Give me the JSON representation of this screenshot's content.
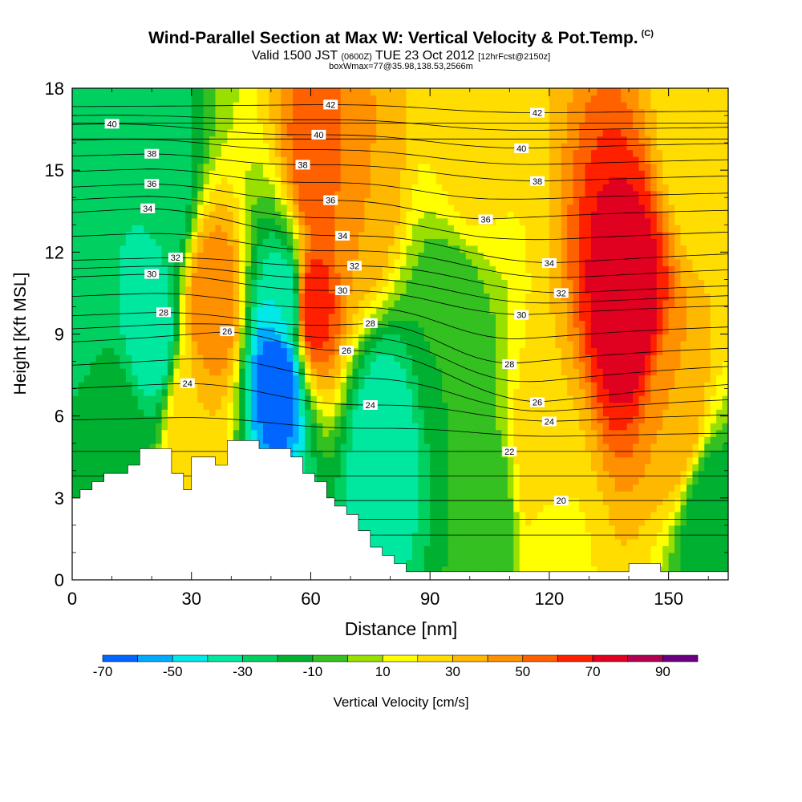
{
  "chart_data": {
    "type": "heatmap",
    "title": "Wind-Parallel Section at Max W: Vertical Velocity & Pot.Temp.",
    "title_mark": "(C)",
    "subtitle": {
      "valid": "Valid 1500 JST",
      "utc": "(0600Z)",
      "date": "TUE 23 Oct 2012",
      "fcst": "[12hrFcst@2150z]"
    },
    "subtitle2": "boxWmax=77@35.98,138.53,2566m",
    "xlabel": "Distance [nm]",
    "ylabel": "Height [Kft MSL]",
    "xlim": [
      0,
      165
    ],
    "ylim": [
      0,
      18
    ],
    "x_ticks": [
      "0",
      "30",
      "60",
      "90",
      "120",
      "150"
    ],
    "y_ticks": [
      "0",
      "3",
      "6",
      "9",
      "12",
      "15",
      "18"
    ],
    "colorbar": {
      "label": "Vertical Velocity [cm/s]",
      "levels": [
        -80,
        -70,
        -60,
        -50,
        -40,
        -30,
        -20,
        -10,
        0,
        10,
        20,
        30,
        40,
        50,
        60,
        70,
        80,
        90,
        100
      ],
      "colors": [
        "#0000ff",
        "#0066ff",
        "#00aaff",
        "#00e8e8",
        "#00e8a0",
        "#00d060",
        "#00b030",
        "#33c020",
        "#99e000",
        "#ffff00",
        "#ffdd00",
        "#ffb800",
        "#ff9000",
        "#ff6000",
        "#ff2000",
        "#e00020",
        "#b00050",
        "#6a0080"
      ],
      "tick_labels": [
        "-70",
        "-50",
        "-30",
        "-10",
        "10",
        "30",
        "50",
        "70",
        "90"
      ]
    },
    "velocity_features": [
      {
        "x": 52,
        "y": 7.5,
        "w": -70
      },
      {
        "x": 54,
        "y": 10,
        "w": -40
      },
      {
        "x": 78,
        "y": 5,
        "w": -40
      },
      {
        "x": 20,
        "y": 9,
        "w": -40
      },
      {
        "x": 23,
        "y": 14,
        "w": -30
      },
      {
        "x": 2,
        "y": 12,
        "w": -30
      },
      {
        "x": 60,
        "y": 10,
        "w": 70
      },
      {
        "x": 62,
        "y": 15,
        "w": 60
      },
      {
        "x": 35,
        "y": 10,
        "w": 50
      },
      {
        "x": 30,
        "y": 6,
        "w": 30
      },
      {
        "x": 72,
        "y": 14,
        "w": 40
      },
      {
        "x": 140,
        "y": 10,
        "w": 80
      },
      {
        "x": 152,
        "y": 6,
        "w": 40
      },
      {
        "x": 118,
        "y": 4,
        "w": 30
      },
      {
        "x": 100,
        "y": 16,
        "w": 25
      },
      {
        "x": 158,
        "y": 16,
        "w": 20
      },
      {
        "x": 120,
        "y": 1.5,
        "w": 15
      },
      {
        "x": 95,
        "y": 9,
        "w": -10
      },
      {
        "x": 105,
        "y": 2,
        "w": -10
      },
      {
        "x": 12,
        "y": 5,
        "w": -10
      },
      {
        "x": 160,
        "y": 2,
        "w": -20
      }
    ],
    "theta_labels": [
      {
        "text": "40",
        "x": 10,
        "y": 16.7
      },
      {
        "text": "38",
        "x": 20,
        "y": 15.6
      },
      {
        "text": "36",
        "x": 20,
        "y": 14.5
      },
      {
        "text": "34",
        "x": 19,
        "y": 13.6
      },
      {
        "text": "32",
        "x": 26,
        "y": 11.8
      },
      {
        "text": "30",
        "x": 20,
        "y": 11.2
      },
      {
        "text": "28",
        "x": 23,
        "y": 9.8
      },
      {
        "text": "26",
        "x": 39,
        "y": 9.1
      },
      {
        "text": "24",
        "x": 29,
        "y": 7.2
      },
      {
        "text": "42",
        "x": 65,
        "y": 17.4
      },
      {
        "text": "40",
        "x": 62,
        "y": 16.3
      },
      {
        "text": "38",
        "x": 58,
        "y": 15.2
      },
      {
        "text": "36",
        "x": 65,
        "y": 13.9
      },
      {
        "text": "34",
        "x": 68,
        "y": 12.6
      },
      {
        "text": "32",
        "x": 71,
        "y": 11.5
      },
      {
        "text": "30",
        "x": 68,
        "y": 10.6
      },
      {
        "text": "28",
        "x": 75,
        "y": 9.4
      },
      {
        "text": "26",
        "x": 69,
        "y": 8.4
      },
      {
        "text": "24",
        "x": 75,
        "y": 6.4
      },
      {
        "text": "42",
        "x": 117,
        "y": 17.1
      },
      {
        "text": "40",
        "x": 113,
        "y": 15.8
      },
      {
        "text": "38",
        "x": 117,
        "y": 14.6
      },
      {
        "text": "36",
        "x": 104,
        "y": 13.2
      },
      {
        "text": "34",
        "x": 120,
        "y": 11.6
      },
      {
        "text": "32",
        "x": 123,
        "y": 10.5
      },
      {
        "text": "30",
        "x": 113,
        "y": 9.7
      },
      {
        "text": "28",
        "x": 110,
        "y": 7.9
      },
      {
        "text": "26",
        "x": 117,
        "y": 6.5
      },
      {
        "text": "24",
        "x": 120,
        "y": 5.8
      },
      {
        "text": "22",
        "x": 110,
        "y": 4.7
      },
      {
        "text": "20",
        "x": 123,
        "y": 2.9
      }
    ],
    "terrain": [
      [
        0,
        3.0
      ],
      [
        2,
        3.0
      ],
      [
        2,
        3.3
      ],
      [
        5,
        3.3
      ],
      [
        5,
        3.6
      ],
      [
        8,
        3.6
      ],
      [
        8,
        3.9
      ],
      [
        14,
        3.9
      ],
      [
        14,
        4.2
      ],
      [
        17,
        4.2
      ],
      [
        17,
        4.8
      ],
      [
        25,
        4.8
      ],
      [
        25,
        3.9
      ],
      [
        28,
        3.9
      ],
      [
        28,
        3.3
      ],
      [
        30,
        3.3
      ],
      [
        30,
        4.5
      ],
      [
        36,
        4.5
      ],
      [
        36,
        4.2
      ],
      [
        39,
        4.2
      ],
      [
        39,
        5.1
      ],
      [
        47,
        5.1
      ],
      [
        47,
        4.8
      ],
      [
        55,
        4.8
      ],
      [
        55,
        4.5
      ],
      [
        58,
        4.5
      ],
      [
        58,
        3.9
      ],
      [
        61,
        3.9
      ],
      [
        61,
        3.6
      ],
      [
        64,
        3.6
      ],
      [
        64,
        3.0
      ],
      [
        66,
        3.0
      ],
      [
        66,
        2.7
      ],
      [
        69,
        2.7
      ],
      [
        69,
        2.4
      ],
      [
        72,
        2.4
      ],
      [
        72,
        1.8
      ],
      [
        75,
        1.8
      ],
      [
        75,
        1.2
      ],
      [
        78,
        1.2
      ],
      [
        78,
        0.9
      ],
      [
        81,
        0.9
      ],
      [
        81,
        0.6
      ],
      [
        84,
        0.6
      ],
      [
        84,
        0.3
      ],
      [
        140,
        0.3
      ],
      [
        140,
        0.6
      ],
      [
        148,
        0.6
      ],
      [
        148,
        0.3
      ],
      [
        165,
        0.3
      ]
    ]
  }
}
